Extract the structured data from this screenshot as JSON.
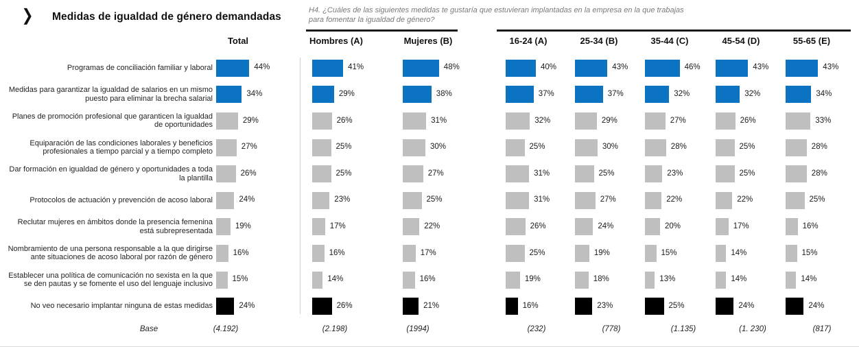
{
  "header": {
    "chevron_icon": "❯",
    "title": "Medidas de igualdad de género demandadas",
    "question": "H4. ¿Cuáles de las siguientes medidas te gustaría que estuvieran implantadas en la empresa en la que trabajas para fomentar la igualdad de género?"
  },
  "base_label": "Base",
  "colors": {
    "highlight_blue": "#0b73c2",
    "neutral_gray": "#bfbfbf",
    "negative_black": "#000000"
  },
  "chart_data": {
    "type": "bar",
    "orientation": "horizontal",
    "xlim": [
      0,
      50
    ],
    "title": "Medidas de igualdad de género demandadas",
    "categories": [
      "Programas de conciliación familiar y laboral",
      "Medidas para garantizar la igualdad de salarios en un mismo puesto para eliminar la brecha salarial",
      "Planes de promoción profesional que garanticen la igualdad de oportunidades",
      "Equiparación de las condiciones laborales y beneficios profesionales a tiempo parcial y a tiempo completo",
      "Dar formación en igualdad de género y oportunidades a toda la plantilla",
      "Protocolos de actuación y prevención de acoso laboral",
      "Reclutar mujeres en ámbitos donde la presencia femenina está subrepresentada",
      "Nombramiento de una persona responsable a la que dirigirse ante situaciones de acoso laboral por razón de género",
      "Establecer una política de comunicación no sexista en la que se den pautas y se fomente el uso del lenguaje inclusivo",
      "No veo necesario implantar ninguna de estas medidas"
    ],
    "row_colors": [
      "#0b73c2",
      "#0b73c2",
      "#bfbfbf",
      "#bfbfbf",
      "#bfbfbf",
      "#bfbfbf",
      "#bfbfbf",
      "#bfbfbf",
      "#bfbfbf",
      "#000000"
    ],
    "series": [
      {
        "name": "Total",
        "group": "total",
        "values": [
          44,
          34,
          29,
          27,
          26,
          24,
          19,
          16,
          15,
          24
        ],
        "base": "(4.192)"
      },
      {
        "name": "Hombres (A)",
        "group": "gender",
        "values": [
          41,
          29,
          26,
          25,
          25,
          23,
          17,
          16,
          14,
          26
        ],
        "base": "(2.198)"
      },
      {
        "name": "Mujeres (B)",
        "group": "gender",
        "values": [
          48,
          38,
          31,
          30,
          27,
          25,
          22,
          17,
          16,
          21
        ],
        "base": "(1994)"
      },
      {
        "name": "16-24 (A)",
        "group": "age",
        "values": [
          40,
          37,
          32,
          25,
          31,
          31,
          26,
          25,
          19,
          16
        ],
        "base": "(232)"
      },
      {
        "name": "25-34 (B)",
        "group": "age",
        "values": [
          43,
          37,
          29,
          30,
          25,
          27,
          24,
          19,
          18,
          23
        ],
        "base": "(778)"
      },
      {
        "name": "35-44 (C)",
        "group": "age",
        "values": [
          46,
          32,
          27,
          28,
          23,
          22,
          20,
          15,
          13,
          25
        ],
        "base": "(1.135)"
      },
      {
        "name": "45-54 (D)",
        "group": "age",
        "values": [
          43,
          32,
          26,
          25,
          25,
          22,
          17,
          14,
          14,
          24
        ],
        "base": "(1. 230)"
      },
      {
        "name": "55-65 (E)",
        "group": "age",
        "values": [
          43,
          34,
          33,
          28,
          28,
          25,
          16,
          15,
          14,
          24
        ],
        "base": "(817)"
      }
    ]
  }
}
